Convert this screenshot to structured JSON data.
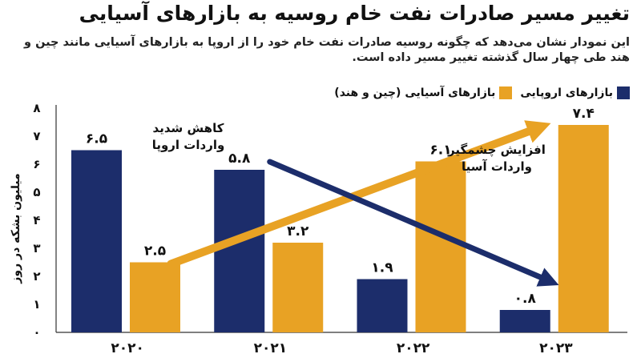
{
  "title": "تغییر مسیر صادرات نفت خام روسیه به بازارهای آسیایی",
  "subtitle": "این نمودار نشان می‌دهد که چگونه روسیه صادرات نفت خام خود را از اروپا به بازارهای آسیایی مانند چین و هند طی چهار سال گذشته تغییر مسیر داده است.",
  "colors": {
    "europe": "#1c2d6b",
    "asia": "#e8a224",
    "arrow": "#1c2d6b",
    "background": "#ffffff"
  },
  "chart_data": {
    "type": "bar",
    "categories": [
      "۲۰۲۰",
      "۲۰۲۱",
      "۲۰۲۲",
      "۲۰۲۳"
    ],
    "series": [
      {
        "name": "بازارهای اروپایی",
        "values": [
          6.5,
          5.8,
          1.9,
          0.8
        ],
        "labels": [
          "۶.۵",
          "۵.۸",
          "۱.۹",
          "۰.۸"
        ],
        "color": "#1c2d6b"
      },
      {
        "name": "بازارهای آسیایی (چین و هند)",
        "values": [
          2.5,
          3.2,
          6.1,
          7.4
        ],
        "labels": [
          "۲.۵",
          "۳.۲",
          "۶.۱",
          "۷.۴"
        ],
        "color": "#e8a224"
      }
    ],
    "ylim": [
      0,
      8
    ],
    "yticks": [
      0,
      1,
      2,
      3,
      4,
      5,
      6,
      7,
      8
    ],
    "ytick_labels": [
      "۰",
      "۱",
      "۲",
      "۳",
      "۴",
      "۵",
      "۶",
      "۷",
      "۸"
    ],
    "ylabel": "میلیون بشکه در روز",
    "xlabel": "",
    "grid": false,
    "legend": "top-right",
    "annotations": [
      {
        "lines": [
          "کاهش شدید",
          "واردات اروپا"
        ]
      },
      {
        "lines": [
          "افزایش چشمگیر",
          "واردات آسیا"
        ]
      }
    ],
    "trend_arrows": [
      {
        "series": "europe",
        "from": {
          "x": "۲۰۲۱",
          "y": 5.8
        },
        "to": {
          "x": "۲۰۲۳",
          "y": 0.8
        }
      },
      {
        "series": "asia",
        "from": {
          "x": "۲۰۲۰",
          "y": 2.5
        },
        "to": {
          "x": "۲۰۲۳",
          "y": 7.4
        }
      }
    ]
  }
}
